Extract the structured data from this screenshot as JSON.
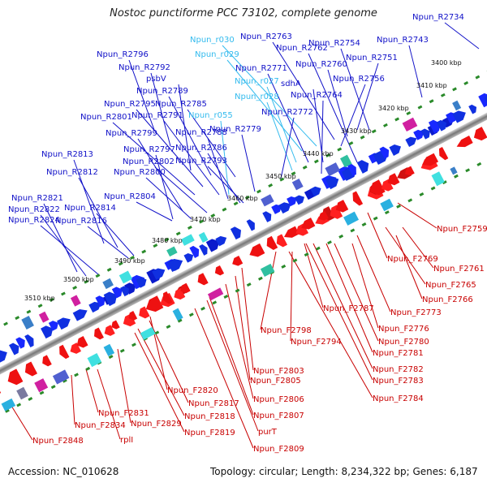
{
  "title": "Nostoc punctiforme PCC 73102, complete genome",
  "footer": {
    "accession": "Accession: NC_010628",
    "summary": "Topology: circular; Length: 8,234,322 bp; Genes: 6,187"
  },
  "colors": {
    "reverse_label": "#1010c8",
    "forward_label": "#c80000",
    "rna_label": "#33bbee",
    "axis": "#888888",
    "dots": "#2a8a2a"
  },
  "ticks": [
    "3400 kbp",
    "3410 kbp",
    "3420 kbp",
    "3430 kbp",
    "3440 kbp",
    "3450 kbp",
    "3460 kbp",
    "3470 kbp",
    "3480 kbp",
    "3490 kbp",
    "3500 kbp",
    "3510 kbp"
  ],
  "upper_labels": [
    {
      "text": "Npun_R2734",
      "kind": "gene"
    },
    {
      "text": "Npun_R2743",
      "kind": "gene"
    },
    {
      "text": "Npun_R2754",
      "kind": "gene"
    },
    {
      "text": "Npun_R2751",
      "kind": "gene"
    },
    {
      "text": "Npun_R2763",
      "kind": "gene"
    },
    {
      "text": "Npun_R2762",
      "kind": "gene"
    },
    {
      "text": "Npun_r030",
      "kind": "rna"
    },
    {
      "text": "Npun_r029",
      "kind": "rna"
    },
    {
      "text": "Npun_R2760",
      "kind": "gene"
    },
    {
      "text": "Npun_R2771",
      "kind": "gene"
    },
    {
      "text": "Npun_R2756",
      "kind": "gene"
    },
    {
      "text": "Npun_r027",
      "kind": "rna"
    },
    {
      "text": "sdhA",
      "kind": "gene"
    },
    {
      "text": "Npun_r028",
      "kind": "rna"
    },
    {
      "text": "Npun_R2764",
      "kind": "gene"
    },
    {
      "text": "Npun_R2796",
      "kind": "gene"
    },
    {
      "text": "Npun_R2792",
      "kind": "gene"
    },
    {
      "text": "psbV",
      "kind": "gene"
    },
    {
      "text": "Npun_R2789",
      "kind": "gene"
    },
    {
      "text": "Npun_R2795",
      "kind": "gene"
    },
    {
      "text": "Npun_R2785",
      "kind": "gene"
    },
    {
      "text": "Npun_r055",
      "kind": "rna"
    },
    {
      "text": "Npun_R2772",
      "kind": "gene"
    },
    {
      "text": "Npun_R2801",
      "kind": "gene"
    },
    {
      "text": "Npun_R2791",
      "kind": "gene"
    },
    {
      "text": "Npun_R2779",
      "kind": "gene"
    },
    {
      "text": "Npun_R2799",
      "kind": "gene"
    },
    {
      "text": "Npun_R2788",
      "kind": "gene"
    },
    {
      "text": "Npun_R2797",
      "kind": "gene"
    },
    {
      "text": "Npun_R2786",
      "kind": "gene"
    },
    {
      "text": "Npun_R2813",
      "kind": "gene"
    },
    {
      "text": "Npun_R2802",
      "kind": "gene"
    },
    {
      "text": "Npun_R2793",
      "kind": "gene"
    },
    {
      "text": "Npun_R2812",
      "kind": "gene"
    },
    {
      "text": "Npun_R2800",
      "kind": "gene"
    },
    {
      "text": "Npun_R2804",
      "kind": "gene"
    },
    {
      "text": "Npun_R2821",
      "kind": "gene"
    },
    {
      "text": "Npun_R2814",
      "kind": "gene"
    },
    {
      "text": "Npun_R2822",
      "kind": "gene"
    },
    {
      "text": "Npun_R2816",
      "kind": "gene"
    },
    {
      "text": "Npun_R2824",
      "kind": "gene"
    }
  ],
  "lower_labels": [
    "Npun_F2759",
    "Npun_F2769",
    "Npun_F2761",
    "Npun_F2765",
    "Npun_F2766",
    "Npun_F2773",
    "Npun_F2787",
    "Npun_F2776",
    "Npun_F2780",
    "Npun_F2798",
    "Npun_F2794",
    "Npun_F2781",
    "Npun_F2782",
    "Npun_F2783",
    "Npun_F2803",
    "Npun_F2805",
    "Npun_F2784",
    "Npun_F2806",
    "Npun_F2807",
    "purT",
    "Npun_F2809",
    "Npun_F2820",
    "Npun_F2817",
    "Npun_F2818",
    "Npun_F2819",
    "Npun_F2831",
    "Npun_F2834",
    "Npun_F2829",
    "rplI",
    "Npun_F2848"
  ]
}
